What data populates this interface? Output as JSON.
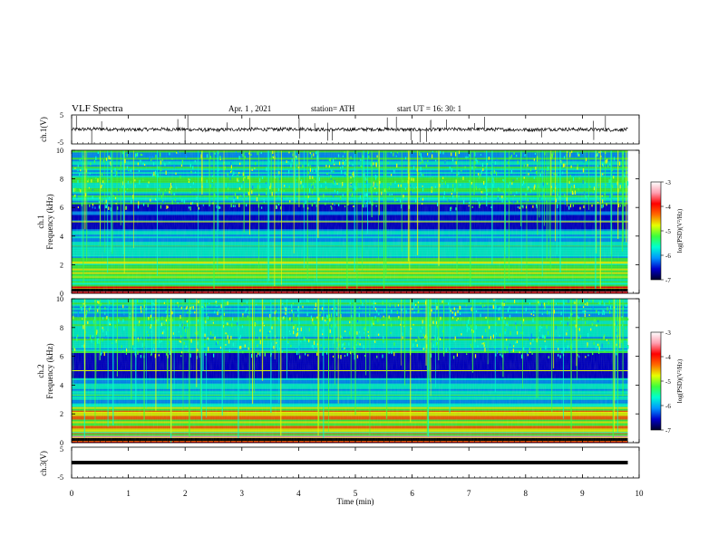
{
  "header": {
    "title": "VLF  Spectra",
    "date": "Apr. 1  , 2021",
    "station": "station= ATH",
    "start": "start  UT  =    16: 30: 1"
  },
  "colors": {
    "trace": "#000000",
    "axes": "#000000",
    "colorbar_stops": [
      "#00002a",
      "#0000cc",
      "#0096ff",
      "#00ffd0",
      "#3cff3c",
      "#e6ff00",
      "#ff6a00",
      "#ff0000",
      "#ff9fb0",
      "#ffffff"
    ]
  },
  "chart_data": [
    {
      "type": "line",
      "id": "ch1",
      "ylabel": "ch.1(V)",
      "yticks": [
        "5",
        "-5"
      ],
      "ylim": [
        -5,
        5
      ],
      "xlim": [
        0,
        10
      ],
      "series": [
        {
          "x": [
            0,
            0.5,
            1,
            1.5,
            2,
            2.5,
            3,
            3.5,
            4,
            4.5,
            5,
            5.5,
            6,
            6.5,
            7,
            7.5,
            8,
            8.5,
            9,
            9.5,
            9.8
          ],
          "values": [
            0,
            0.2,
            -0.1,
            0.1,
            0,
            -0.2,
            0.1,
            0,
            0.2,
            -0.1,
            0,
            0.1,
            -0.1,
            0,
            0.1,
            0,
            -0.1,
            0.1,
            0,
            -0.1,
            0
          ]
        }
      ]
    },
    {
      "type": "heatmap",
      "id": "ch1-spectrogram",
      "ylabel": "ch.1\nFrequency  (kHz)",
      "yticks": [
        "0",
        "2",
        "4",
        "6",
        "8",
        "10"
      ],
      "ylim": [
        0,
        10
      ],
      "xlim": [
        0,
        10
      ],
      "colorbar": {
        "label": "log(PSD)(V²/Hz)",
        "ticks": [
          "-3",
          "-4",
          "-5",
          "-6",
          "-7"
        ],
        "range": [
          -7,
          -3
        ]
      }
    },
    {
      "type": "heatmap",
      "id": "ch2-spectrogram",
      "ylabel": "ch.2\nFrequency  (kHz)",
      "yticks": [
        "0",
        "2",
        "4",
        "6",
        "8",
        "10"
      ],
      "ylim": [
        0,
        10
      ],
      "xlim": [
        0,
        10
      ],
      "colorbar": {
        "label": "log(PSD)(V²/Hz)",
        "ticks": [
          "-3",
          "-4",
          "-5",
          "-6",
          "-7"
        ],
        "range": [
          -7,
          -3
        ]
      }
    },
    {
      "type": "line",
      "id": "ch3",
      "ylabel": "ch.3(V)",
      "yticks": [
        "5",
        "-5"
      ],
      "ylim": [
        -5,
        5
      ],
      "xlim": [
        0,
        10
      ],
      "series": [
        {
          "x": [
            0,
            9.8
          ],
          "values": [
            0,
            0
          ]
        }
      ]
    }
  ],
  "xaxis": {
    "label": "Time  (min)",
    "ticks": [
      "0",
      "1",
      "2",
      "3",
      "4",
      "5",
      "6",
      "7",
      "8",
      "9",
      "10"
    ]
  }
}
